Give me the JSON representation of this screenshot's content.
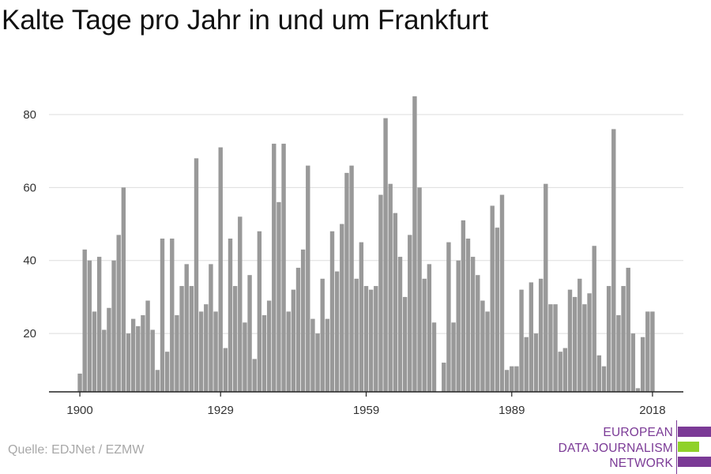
{
  "title": "Kalte Tage pro Jahr in und um Frankfurt",
  "source": "Quelle: EDJNet / EZMW",
  "logo": {
    "line1": "EUROPEAN",
    "line2": "DATA JOURNALISM",
    "line3": "NETWORK",
    "colors": {
      "purple": "#7b3a96",
      "green": "#8fd12a"
    }
  },
  "chart_data": {
    "type": "bar",
    "title": "Kalte Tage pro Jahr in und um Frankfurt",
    "xlabel": "",
    "ylabel": "",
    "x_tick_labels": [
      "1900",
      "1929",
      "1959",
      "1989",
      "2018"
    ],
    "x_ticks": [
      1900,
      1929,
      1959,
      1989,
      2018
    ],
    "y_ticks": [
      20,
      40,
      60,
      80
    ],
    "ylim": [
      4,
      88
    ],
    "xlim": [
      1899.5,
      2018.5
    ],
    "grid": true,
    "bar_color": "#999999",
    "x": [
      1900,
      1901,
      1902,
      1903,
      1904,
      1905,
      1906,
      1907,
      1908,
      1909,
      1910,
      1911,
      1912,
      1913,
      1914,
      1915,
      1916,
      1917,
      1918,
      1919,
      1920,
      1921,
      1922,
      1923,
      1924,
      1925,
      1926,
      1927,
      1928,
      1929,
      1930,
      1931,
      1932,
      1933,
      1934,
      1935,
      1936,
      1937,
      1938,
      1939,
      1940,
      1941,
      1942,
      1943,
      1944,
      1945,
      1946,
      1947,
      1948,
      1949,
      1950,
      1951,
      1952,
      1953,
      1954,
      1955,
      1956,
      1957,
      1958,
      1959,
      1960,
      1961,
      1962,
      1963,
      1964,
      1965,
      1966,
      1967,
      1968,
      1969,
      1970,
      1971,
      1972,
      1973,
      1974,
      1975,
      1976,
      1977,
      1978,
      1979,
      1980,
      1981,
      1982,
      1983,
      1984,
      1985,
      1986,
      1987,
      1988,
      1989,
      1990,
      1991,
      1992,
      1993,
      1994,
      1995,
      1996,
      1997,
      1998,
      1999,
      2000,
      2001,
      2002,
      2003,
      2004,
      2005,
      2006,
      2007,
      2008,
      2009,
      2010,
      2011,
      2012,
      2013,
      2014,
      2015,
      2016,
      2017,
      2018
    ],
    "values": [
      9,
      43,
      40,
      26,
      41,
      21,
      27,
      40,
      47,
      60,
      20,
      24,
      22,
      25,
      29,
      21,
      10,
      46,
      15,
      46,
      25,
      33,
      39,
      33,
      68,
      26,
      28,
      39,
      26,
      71,
      16,
      46,
      33,
      52,
      23,
      36,
      13,
      48,
      25,
      29,
      72,
      56,
      72,
      26,
      32,
      38,
      43,
      66,
      24,
      20,
      35,
      24,
      48,
      37,
      50,
      64,
      66,
      35,
      45,
      33,
      32,
      33,
      58,
      79,
      61,
      53,
      41,
      30,
      47,
      85,
      60,
      35,
      39,
      23,
      4,
      12,
      45,
      23,
      40,
      51,
      46,
      41,
      36,
      29,
      26,
      55,
      49,
      58,
      10,
      11,
      11,
      32,
      19,
      34,
      20,
      35,
      61,
      28,
      28,
      15,
      16,
      32,
      30,
      35,
      28,
      31,
      44,
      14,
      11,
      33,
      76,
      25,
      33,
      38,
      20,
      5,
      19,
      26,
      26
    ]
  }
}
